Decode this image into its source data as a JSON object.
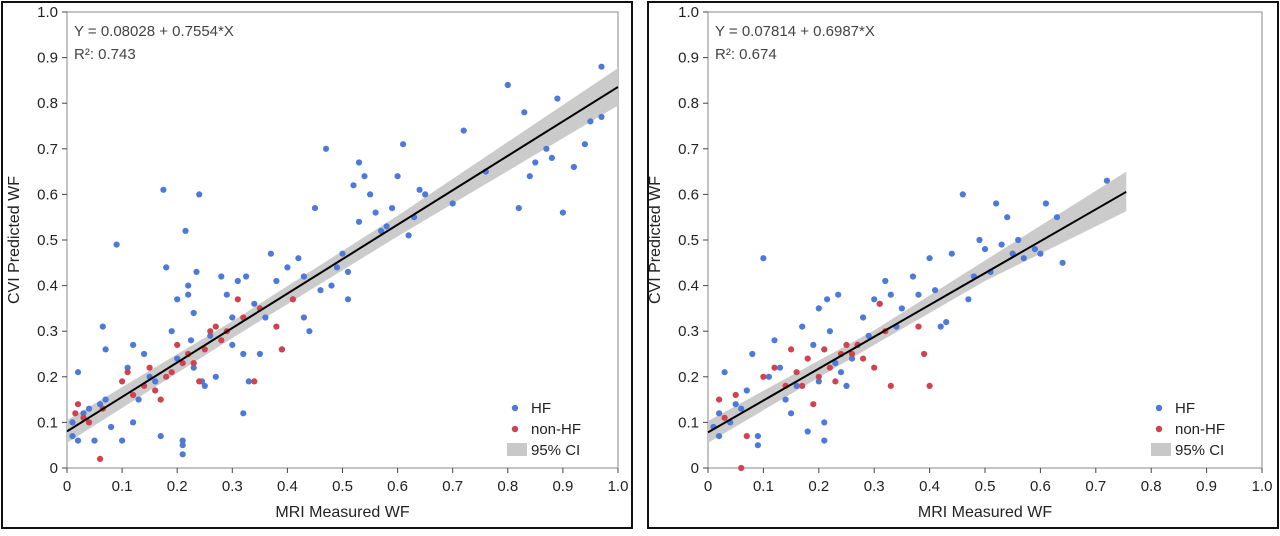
{
  "chart_data": [
    {
      "type": "scatter",
      "xlabel": "MRI Measured WF",
      "ylabel": "CVI Predicted WF",
      "xlim": [
        0,
        1.0
      ],
      "ylim": [
        0,
        1.0
      ],
      "x_ticks": [
        "0",
        "0.1",
        "0.2",
        "0.3",
        "0.4",
        "0.5",
        "0.6",
        "0.7",
        "0.8",
        "0.9",
        "1.0"
      ],
      "y_ticks": [
        "0",
        "0.1",
        "0.2",
        "0.3",
        "0.4",
        "0.5",
        "0.6",
        "0.7",
        "0.8",
        "0.9",
        "1.0"
      ],
      "equation": "Y = 0.08028 + 0.7554*X",
      "r2_label": "R²: 0.743",
      "fit": {
        "intercept": 0.08028,
        "slope": 0.7554,
        "x_range": [
          0,
          1.0
        ]
      },
      "ci_band": [
        [
          0,
          0.055,
          0.105
        ],
        [
          0.3,
          0.285,
          0.322
        ],
        [
          0.6,
          0.508,
          0.553
        ],
        [
          1.0,
          0.795,
          0.877
        ]
      ],
      "legend": {
        "position": "bottom-right",
        "items": [
          "HF",
          "non-HF",
          "95% CI"
        ]
      },
      "colors": {
        "HF": "#4d79d8",
        "non-HF": "#d0434e",
        "ci": "#c8c8c8",
        "fit": "#000000"
      },
      "series": [
        {
          "name": "HF",
          "points": [
            [
              0.01,
              0.07
            ],
            [
              0.01,
              0.1
            ],
            [
              0.02,
              0.06
            ],
            [
              0.02,
              0.21
            ],
            [
              0.03,
              0.12
            ],
            [
              0.04,
              0.13
            ],
            [
              0.05,
              0.06
            ],
            [
              0.06,
              0.14
            ],
            [
              0.065,
              0.31
            ],
            [
              0.07,
              0.26
            ],
            [
              0.07,
              0.15
            ],
            [
              0.08,
              0.09
            ],
            [
              0.09,
              0.49
            ],
            [
              0.1,
              0.06
            ],
            [
              0.11,
              0.22
            ],
            [
              0.12,
              0.27
            ],
            [
              0.12,
              0.1
            ],
            [
              0.13,
              0.15
            ],
            [
              0.14,
              0.25
            ],
            [
              0.15,
              0.2
            ],
            [
              0.16,
              0.19
            ],
            [
              0.17,
              0.07
            ],
            [
              0.175,
              0.61
            ],
            [
              0.18,
              0.44
            ],
            [
              0.19,
              0.3
            ],
            [
              0.2,
              0.24
            ],
            [
              0.2,
              0.37
            ],
            [
              0.21,
              0.06
            ],
            [
              0.21,
              0.05
            ],
            [
              0.21,
              0.03
            ],
            [
              0.215,
              0.52
            ],
            [
              0.22,
              0.4
            ],
            [
              0.22,
              0.38
            ],
            [
              0.225,
              0.28
            ],
            [
              0.23,
              0.22
            ],
            [
              0.23,
              0.34
            ],
            [
              0.235,
              0.43
            ],
            [
              0.24,
              0.6
            ],
            [
              0.245,
              0.19
            ],
            [
              0.25,
              0.18
            ],
            [
              0.26,
              0.29
            ],
            [
              0.27,
              0.2
            ],
            [
              0.28,
              0.42
            ],
            [
              0.29,
              0.38
            ],
            [
              0.3,
              0.33
            ],
            [
              0.3,
              0.27
            ],
            [
              0.31,
              0.41
            ],
            [
              0.32,
              0.25
            ],
            [
              0.32,
              0.12
            ],
            [
              0.325,
              0.42
            ],
            [
              0.33,
              0.19
            ],
            [
              0.34,
              0.36
            ],
            [
              0.35,
              0.25
            ],
            [
              0.36,
              0.33
            ],
            [
              0.37,
              0.47
            ],
            [
              0.38,
              0.41
            ],
            [
              0.39,
              0.26
            ],
            [
              0.4,
              0.44
            ],
            [
              0.41,
              0.37
            ],
            [
              0.42,
              0.46
            ],
            [
              0.43,
              0.42
            ],
            [
              0.43,
              0.33
            ],
            [
              0.44,
              0.3
            ],
            [
              0.45,
              0.57
            ],
            [
              0.46,
              0.39
            ],
            [
              0.47,
              0.7
            ],
            [
              0.48,
              0.4
            ],
            [
              0.49,
              0.44
            ],
            [
              0.5,
              0.47
            ],
            [
              0.51,
              0.43
            ],
            [
              0.51,
              0.37
            ],
            [
              0.52,
              0.62
            ],
            [
              0.53,
              0.54
            ],
            [
              0.53,
              0.67
            ],
            [
              0.54,
              0.64
            ],
            [
              0.55,
              0.6
            ],
            [
              0.56,
              0.56
            ],
            [
              0.57,
              0.52
            ],
            [
              0.58,
              0.53
            ],
            [
              0.59,
              0.57
            ],
            [
              0.6,
              0.64
            ],
            [
              0.61,
              0.71
            ],
            [
              0.62,
              0.51
            ],
            [
              0.63,
              0.55
            ],
            [
              0.64,
              0.61
            ],
            [
              0.65,
              0.6
            ],
            [
              0.7,
              0.58
            ],
            [
              0.72,
              0.74
            ],
            [
              0.76,
              0.65
            ],
            [
              0.8,
              0.84
            ],
            [
              0.82,
              0.57
            ],
            [
              0.83,
              0.78
            ],
            [
              0.84,
              0.64
            ],
            [
              0.85,
              0.67
            ],
            [
              0.87,
              0.7
            ],
            [
              0.88,
              0.68
            ],
            [
              0.89,
              0.81
            ],
            [
              0.9,
              0.56
            ],
            [
              0.92,
              0.66
            ],
            [
              0.94,
              0.71
            ],
            [
              0.95,
              0.76
            ],
            [
              0.97,
              0.88
            ],
            [
              0.97,
              0.77
            ]
          ]
        },
        {
          "name": "non-HF",
          "points": [
            [
              0.015,
              0.12
            ],
            [
              0.02,
              0.14
            ],
            [
              0.03,
              0.11
            ],
            [
              0.04,
              0.1
            ],
            [
              0.06,
              0.02
            ],
            [
              0.065,
              0.13
            ],
            [
              0.1,
              0.19
            ],
            [
              0.11,
              0.21
            ],
            [
              0.12,
              0.16
            ],
            [
              0.14,
              0.18
            ],
            [
              0.15,
              0.22
            ],
            [
              0.16,
              0.17
            ],
            [
              0.17,
              0.15
            ],
            [
              0.18,
              0.2
            ],
            [
              0.19,
              0.21
            ],
            [
              0.2,
              0.27
            ],
            [
              0.21,
              0.23
            ],
            [
              0.22,
              0.25
            ],
            [
              0.23,
              0.23
            ],
            [
              0.24,
              0.19
            ],
            [
              0.25,
              0.26
            ],
            [
              0.26,
              0.3
            ],
            [
              0.27,
              0.31
            ],
            [
              0.28,
              0.28
            ],
            [
              0.29,
              0.3
            ],
            [
              0.31,
              0.37
            ],
            [
              0.32,
              0.33
            ],
            [
              0.34,
              0.19
            ],
            [
              0.35,
              0.35
            ],
            [
              0.38,
              0.31
            ],
            [
              0.39,
              0.26
            ],
            [
              0.41,
              0.37
            ]
          ]
        }
      ]
    },
    {
      "type": "scatter",
      "xlabel": "MRI Measured WF",
      "ylabel": "CVI Predicted WF",
      "xlim": [
        0,
        1.0
      ],
      "ylim": [
        0,
        1.0
      ],
      "x_ticks": [
        "0",
        "0.1",
        "0.2",
        "0.3",
        "0.4",
        "0.5",
        "0.6",
        "0.7",
        "0.8",
        "0.9",
        "1.0"
      ],
      "y_ticks": [
        "0",
        "0.1",
        "0.2",
        "0.3",
        "0.4",
        "0.5",
        "0.6",
        "0.7",
        "0.8",
        "0.9",
        "1.0"
      ],
      "equation": "Y = 0.07814 + 0.6987*X",
      "r2_label": "R²: 0.674",
      "fit": {
        "intercept": 0.07814,
        "slope": 0.6987,
        "x_range": [
          0,
          0.755
        ]
      },
      "ci_band": [
        [
          0,
          0.055,
          0.103
        ],
        [
          0.3,
          0.27,
          0.302
        ],
        [
          0.5,
          0.41,
          0.455
        ],
        [
          0.755,
          0.563,
          0.65
        ]
      ],
      "legend": {
        "position": "bottom-right",
        "items": [
          "HF",
          "non-HF",
          "95% CI"
        ]
      },
      "colors": {
        "HF": "#4d79d8",
        "non-HF": "#d0434e",
        "ci": "#c8c8c8",
        "fit": "#000000"
      },
      "series": [
        {
          "name": "HF",
          "points": [
            [
              0.01,
              0.09
            ],
            [
              0.02,
              0.12
            ],
            [
              0.02,
              0.07
            ],
            [
              0.03,
              0.21
            ],
            [
              0.04,
              0.1
            ],
            [
              0.05,
              0.14
            ],
            [
              0.06,
              0.13
            ],
            [
              0.07,
              0.17
            ],
            [
              0.08,
              0.25
            ],
            [
              0.09,
              0.05
            ],
            [
              0.09,
              0.07
            ],
            [
              0.1,
              0.46
            ],
            [
              0.11,
              0.2
            ],
            [
              0.12,
              0.28
            ],
            [
              0.13,
              0.22
            ],
            [
              0.14,
              0.15
            ],
            [
              0.15,
              0.12
            ],
            [
              0.16,
              0.18
            ],
            [
              0.17,
              0.31
            ],
            [
              0.18,
              0.08
            ],
            [
              0.19,
              0.27
            ],
            [
              0.2,
              0.35
            ],
            [
              0.2,
              0.19
            ],
            [
              0.21,
              0.1
            ],
            [
              0.21,
              0.06
            ],
            [
              0.215,
              0.37
            ],
            [
              0.22,
              0.3
            ],
            [
              0.23,
              0.23
            ],
            [
              0.235,
              0.38
            ],
            [
              0.24,
              0.21
            ],
            [
              0.25,
              0.18
            ],
            [
              0.26,
              0.24
            ],
            [
              0.27,
              0.27
            ],
            [
              0.28,
              0.33
            ],
            [
              0.29,
              0.29
            ],
            [
              0.3,
              0.37
            ],
            [
              0.31,
              0.36
            ],
            [
              0.32,
              0.41
            ],
            [
              0.33,
              0.38
            ],
            [
              0.34,
              0.31
            ],
            [
              0.35,
              0.35
            ],
            [
              0.37,
              0.42
            ],
            [
              0.38,
              0.38
            ],
            [
              0.4,
              0.46
            ],
            [
              0.41,
              0.39
            ],
            [
              0.42,
              0.31
            ],
            [
              0.43,
              0.32
            ],
            [
              0.44,
              0.47
            ],
            [
              0.46,
              0.6
            ],
            [
              0.47,
              0.37
            ],
            [
              0.48,
              0.42
            ],
            [
              0.49,
              0.5
            ],
            [
              0.5,
              0.48
            ],
            [
              0.51,
              0.43
            ],
            [
              0.52,
              0.58
            ],
            [
              0.53,
              0.49
            ],
            [
              0.54,
              0.55
            ],
            [
              0.55,
              0.47
            ],
            [
              0.56,
              0.5
            ],
            [
              0.57,
              0.46
            ],
            [
              0.59,
              0.48
            ],
            [
              0.6,
              0.47
            ],
            [
              0.61,
              0.58
            ],
            [
              0.63,
              0.55
            ],
            [
              0.64,
              0.45
            ],
            [
              0.72,
              0.63
            ]
          ]
        },
        {
          "name": "non-HF",
          "points": [
            [
              0.02,
              0.15
            ],
            [
              0.03,
              0.11
            ],
            [
              0.05,
              0.16
            ],
            [
              0.06,
              0.0
            ],
            [
              0.07,
              0.07
            ],
            [
              0.1,
              0.2
            ],
            [
              0.12,
              0.22
            ],
            [
              0.14,
              0.18
            ],
            [
              0.15,
              0.26
            ],
            [
              0.16,
              0.21
            ],
            [
              0.17,
              0.18
            ],
            [
              0.18,
              0.24
            ],
            [
              0.19,
              0.14
            ],
            [
              0.2,
              0.2
            ],
            [
              0.21,
              0.26
            ],
            [
              0.22,
              0.22
            ],
            [
              0.23,
              0.19
            ],
            [
              0.24,
              0.25
            ],
            [
              0.25,
              0.27
            ],
            [
              0.26,
              0.25
            ],
            [
              0.27,
              0.27
            ],
            [
              0.28,
              0.24
            ],
            [
              0.3,
              0.22
            ],
            [
              0.31,
              0.36
            ],
            [
              0.32,
              0.3
            ],
            [
              0.33,
              0.18
            ],
            [
              0.38,
              0.31
            ],
            [
              0.39,
              0.25
            ],
            [
              0.4,
              0.18
            ]
          ]
        }
      ]
    }
  ]
}
